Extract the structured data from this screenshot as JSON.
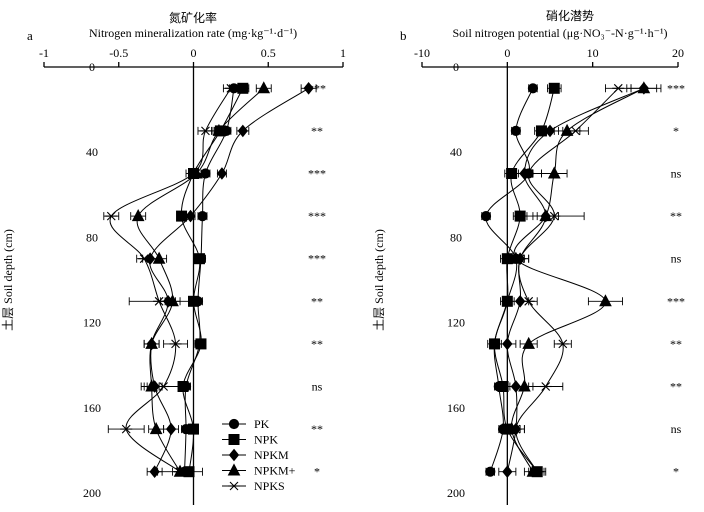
{
  "chart_data": [
    {
      "type": "line",
      "panel": "a",
      "title_cn": "氮矿化率",
      "title_en": "Nitrogen mineralization rate (mg·kg⁻¹·d⁻¹)",
      "ylabel": "土层 Soil depth (cm)",
      "xlim": [
        -1,
        1
      ],
      "x_ticks": [
        "-1",
        "-0.5",
        "0",
        "0.5",
        "1"
      ],
      "x_tick_values": [
        -1,
        -0.5,
        0,
        0.5,
        1
      ],
      "ylim": [
        0,
        200
      ],
      "y_ticks": [
        "0",
        "40",
        "80",
        "120",
        "160",
        "200"
      ],
      "y_tick_values": [
        0,
        40,
        80,
        120,
        160,
        200
      ],
      "depths": [
        10,
        30,
        50,
        70,
        90,
        110,
        130,
        150,
        170,
        190
      ],
      "series": [
        {
          "name": "PK",
          "values": [
            0.27,
            0.22,
            0.08,
            0.06,
            0.05,
            0.03,
            0.04,
            -0.05,
            -0.05,
            -0.06
          ],
          "err": [
            0.03,
            0.03,
            0.03,
            0.03,
            0.03,
            0.03,
            0.03,
            0.03,
            0.03,
            0.03
          ]
        },
        {
          "name": "NPK",
          "values": [
            0.33,
            0.18,
            0.0,
            -0.08,
            0.04,
            0.0,
            0.05,
            -0.07,
            0.0,
            -0.03
          ],
          "err": [
            0.04,
            0.04,
            0.03,
            0.03,
            0.03,
            0.03,
            0.03,
            0.03,
            0.03,
            0.03
          ]
        },
        {
          "name": "NPKM",
          "values": [
            0.77,
            0.33,
            0.19,
            -0.02,
            -0.29,
            -0.17,
            -0.28,
            -0.26,
            -0.15,
            -0.26
          ],
          "err": [
            0.05,
            0.04,
            0.03,
            0.03,
            0.05,
            0.05,
            0.05,
            0.05,
            0.05,
            0.05
          ]
        },
        {
          "name": "NPKM+",
          "values": [
            0.47,
            0.17,
            0.02,
            -0.37,
            -0.23,
            -0.14,
            -0.28,
            -0.28,
            -0.25,
            -0.09
          ],
          "err": [
            0.05,
            0.05,
            0.05,
            0.05,
            0.05,
            0.05,
            0.05,
            0.05,
            0.05,
            0.05
          ]
        },
        {
          "name": "NPKS",
          "values": [
            0.25,
            0.08,
            0.0,
            -0.55,
            -0.33,
            -0.23,
            -0.12,
            -0.2,
            -0.45,
            -0.09
          ],
          "err": [
            0.05,
            0.05,
            0.05,
            0.05,
            0.05,
            0.2,
            0.08,
            0.15,
            0.12,
            0.15
          ]
        }
      ],
      "significance": [
        {
          "depth": 10,
          "label": "***"
        },
        {
          "depth": 30,
          "label": "**"
        },
        {
          "depth": 50,
          "label": "***"
        },
        {
          "depth": 70,
          "label": "***"
        },
        {
          "depth": 90,
          "label": "***"
        },
        {
          "depth": 110,
          "label": "**"
        },
        {
          "depth": 130,
          "label": "**"
        },
        {
          "depth": 150,
          "label": "ns"
        },
        {
          "depth": 170,
          "label": "**"
        },
        {
          "depth": 190,
          "label": "*"
        }
      ],
      "legend": {
        "position": "bottom-right",
        "entries": [
          "PK",
          "NPK",
          "NPKM",
          "NPKM+",
          "NPKS"
        ]
      }
    },
    {
      "type": "line",
      "panel": "b",
      "title_cn": "硝化潜势",
      "title_en": "Soil nitrogen potential (μg·NO₃⁻-N·g⁻¹·h⁻¹)",
      "ylabel": "土层 Soil depth (cm)",
      "xlim": [
        -10,
        20
      ],
      "x_ticks": [
        "-10",
        "0",
        "10",
        "20"
      ],
      "x_tick_values": [
        -10,
        0,
        10,
        20
      ],
      "ylim": [
        0,
        200
      ],
      "y_ticks": [
        "0",
        "40",
        "80",
        "120",
        "160",
        "200"
      ],
      "y_tick_values": [
        0,
        40,
        80,
        120,
        160,
        200
      ],
      "depths": [
        10,
        30,
        50,
        70,
        90,
        110,
        130,
        150,
        170,
        190
      ],
      "series": [
        {
          "name": "PK",
          "values": [
            3.0,
            1.0,
            2.5,
            -2.5,
            1.0,
            0.0,
            -1.5,
            -1.0,
            -0.5,
            -2.0
          ],
          "err": [
            0.5,
            0.5,
            0.5,
            0.5,
            0.5,
            0.5,
            0.5,
            0.5,
            0.5,
            0.5
          ]
        },
        {
          "name": "NPK",
          "values": [
            5.5,
            4.0,
            0.5,
            1.5,
            0.0,
            0.0,
            -1.5,
            -0.5,
            0.0,
            3.5
          ],
          "err": [
            0.8,
            0.8,
            0.8,
            0.8,
            0.8,
            0.8,
            0.8,
            0.8,
            0.8,
            0.8
          ]
        },
        {
          "name": "NPKM",
          "values": [
            16.0,
            5.0,
            2.0,
            4.5,
            1.5,
            1.5,
            0.0,
            1.0,
            1.0,
            0.0
          ],
          "err": [
            1.5,
            1.0,
            1.0,
            1.0,
            1.0,
            1.0,
            1.0,
            1.0,
            1.0,
            1.0
          ]
        },
        {
          "name": "NPKM+",
          "values": [
            16.0,
            7.0,
            5.5,
            4.5,
            1.0,
            11.5,
            2.5,
            2.0,
            0.5,
            3.0
          ],
          "err": [
            2.0,
            1.5,
            1.5,
            1.5,
            1.0,
            2.0,
            1.0,
            1.0,
            1.0,
            1.0
          ]
        },
        {
          "name": "NPKS",
          "values": [
            13.0,
            8.0,
            2.5,
            5.5,
            1.5,
            2.5,
            6.5,
            4.5,
            1.0,
            3.5
          ],
          "err": [
            1.5,
            1.5,
            1.5,
            3.5,
            1.0,
            1.0,
            1.0,
            2.0,
            1.0,
            1.0
          ]
        }
      ],
      "significance": [
        {
          "depth": 10,
          "label": "***"
        },
        {
          "depth": 30,
          "label": "*"
        },
        {
          "depth": 50,
          "label": "ns"
        },
        {
          "depth": 70,
          "label": "**"
        },
        {
          "depth": 90,
          "label": "ns"
        },
        {
          "depth": 110,
          "label": "***"
        },
        {
          "depth": 130,
          "label": "**"
        },
        {
          "depth": 150,
          "label": "**"
        },
        {
          "depth": 170,
          "label": "ns"
        },
        {
          "depth": 190,
          "label": "*"
        }
      ]
    }
  ]
}
